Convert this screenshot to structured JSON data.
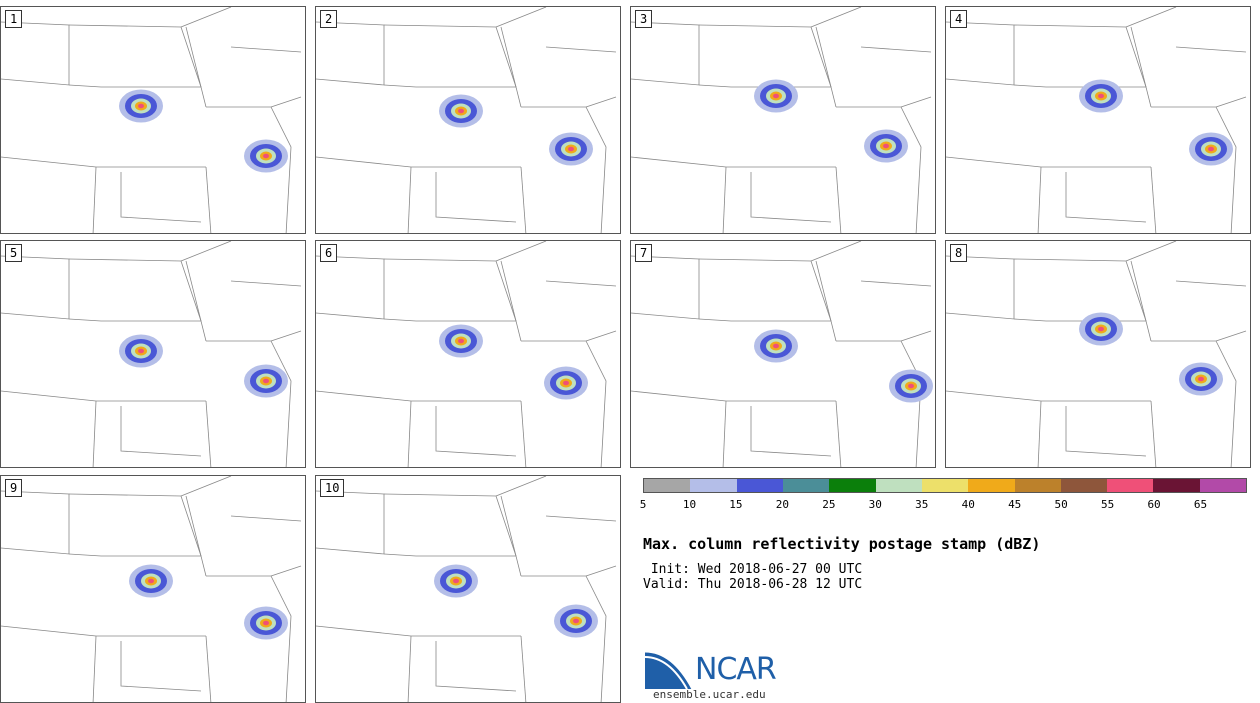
{
  "panels": [
    {
      "label": "1"
    },
    {
      "label": "2"
    },
    {
      "label": "3"
    },
    {
      "label": "4"
    },
    {
      "label": "5"
    },
    {
      "label": "6"
    },
    {
      "label": "7"
    },
    {
      "label": "8"
    },
    {
      "label": "9"
    },
    {
      "label": "10"
    }
  ],
  "colorbar": {
    "colors": [
      "#a6a6a6",
      "#b4bee8",
      "#4a57d6",
      "#4b8e98",
      "#0b7f0b",
      "#bfe0bf",
      "#ede06a",
      "#f0aa1a",
      "#bc812b",
      "#8e563b",
      "#ef5078",
      "#6a1434",
      "#b24aa8"
    ],
    "ticks": [
      "5",
      "10",
      "15",
      "20",
      "25",
      "30",
      "35",
      "40",
      "45",
      "50",
      "55",
      "60",
      "65"
    ]
  },
  "title": "Max. column reflectivity postage stamp (dBZ)",
  "init": " Init: Wed 2018-06-27 00 UTC",
  "valid": "Valid: Thu 2018-06-28 12 UTC",
  "logo": {
    "name": "NCAR",
    "url": "ensemble.ucar.edu"
  }
}
